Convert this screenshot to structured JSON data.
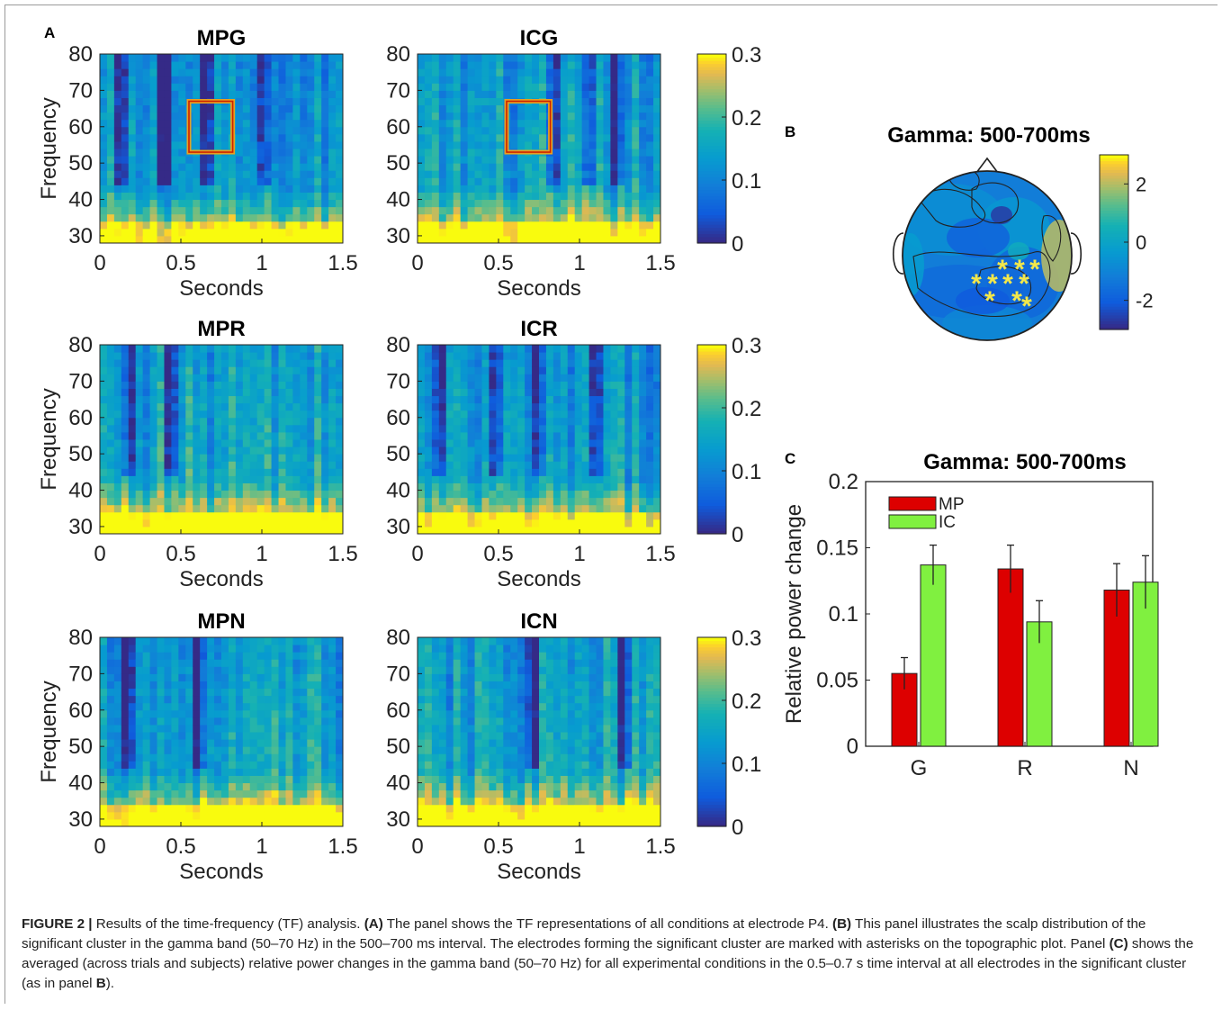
{
  "figure": {
    "panel_labels": {
      "A": "A",
      "B": "B",
      "C": "C"
    },
    "caption": {
      "lead": "FIGURE 2 |",
      "parts": [
        {
          "t": " Results of the time-frequency (TF) analysis. ",
          "b": false
        },
        {
          "t": "(A)",
          "b": true
        },
        {
          "t": " The panel shows the TF representations of all conditions at electrode P4. ",
          "b": false
        },
        {
          "t": "(B)",
          "b": true
        },
        {
          "t": " This panel illustrates the scalp distribution of the significant cluster in the gamma band (50–70 Hz) in the 500–700 ms interval. The electrodes forming the significant cluster are marked with asterisks on the topographic plot. Panel ",
          "b": false
        },
        {
          "t": "(C)",
          "b": true
        },
        {
          "t": " shows the averaged (across trials and subjects) relative power changes in the gamma band (50–70 Hz) for all experimental conditions in the 0.5–0.7 s time interval at all electrodes in the significant cluster (as in panel ",
          "b": false
        },
        {
          "t": "B",
          "b": true
        },
        {
          "t": ").",
          "b": false
        }
      ]
    }
  },
  "chart_data": [
    {
      "type": "heatmap",
      "panel": "A",
      "titles": [
        "MPG",
        "ICG",
        "MPR",
        "ICR",
        "MPN",
        "ICN"
      ],
      "xlabel": "Seconds",
      "ylabel": "Frequency",
      "xticks": [
        "0",
        "0.5",
        "1",
        "1.5"
      ],
      "yticks": [
        "30",
        "40",
        "50",
        "60",
        "70",
        "80"
      ],
      "xlim": [
        0,
        1.5
      ],
      "ylim": [
        28,
        80
      ],
      "colorbar": {
        "ticks": [
          "0",
          "0.1",
          "0.2",
          "0.3"
        ],
        "range": [
          0,
          0.3
        ]
      },
      "highlight_box": {
        "panels": [
          "MPG",
          "ICG"
        ],
        "x": [
          0.55,
          0.82
        ],
        "y": [
          53,
          67
        ]
      },
      "colormap": "parula"
    },
    {
      "type": "heatmap",
      "panel": "B",
      "title": "Gamma: 500-700ms",
      "colorbar": {
        "ticks": [
          "2",
          "0",
          "-2"
        ],
        "range": [
          -3,
          3
        ]
      },
      "significant_marker": "*",
      "significant_count": 10
    },
    {
      "type": "bar",
      "panel": "C",
      "title": "Gamma: 500-700ms",
      "ylabel": "Relative power change",
      "categories": [
        "G",
        "R",
        "N"
      ],
      "ylim": [
        0,
        0.2
      ],
      "yticks": [
        "0",
        "0.05",
        "0.1",
        "0.15",
        "0.2"
      ],
      "series": [
        {
          "name": "MP",
          "values": [
            0.055,
            0.134,
            0.118
          ],
          "errors": [
            0.012,
            0.018,
            0.02
          ],
          "color": "#dd0000"
        },
        {
          "name": "IC",
          "values": [
            0.137,
            0.094,
            0.124
          ],
          "errors": [
            0.015,
            0.016,
            0.02
          ],
          "color": "#80f040"
        }
      ]
    }
  ]
}
